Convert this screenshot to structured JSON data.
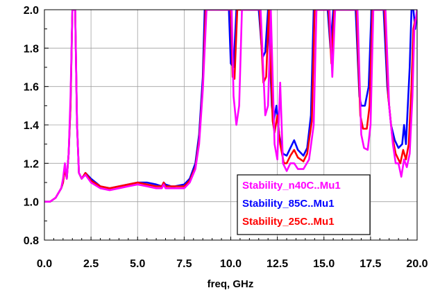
{
  "chart_data": {
    "type": "line",
    "title": "",
    "xlabel": "freq, GHz",
    "ylabel": "",
    "xlim": [
      0.0,
      20.0
    ],
    "ylim": [
      0.8,
      2.0
    ],
    "x_ticks": [
      "0.0",
      "2.5",
      "5.0",
      "7.5",
      "10.0",
      "12.5",
      "15.0",
      "17.5",
      "20.0"
    ],
    "y_ticks": [
      "0.8",
      "1.0",
      "1.2",
      "1.4",
      "1.6",
      "1.8",
      "2.0"
    ],
    "grid": true,
    "legend_position": "bottom-right",
    "legend": [
      "Stability_n40C..Mu1",
      "Stability_85C..Mu1",
      "Stability_25C..Mu1"
    ],
    "series": [
      {
        "name": "Stability_85C..Mu1",
        "color": "#0000ff",
        "points": [
          [
            0.0,
            1.0
          ],
          [
            0.3,
            1.0
          ],
          [
            0.6,
            1.02
          ],
          [
            0.9,
            1.07
          ],
          [
            1.0,
            1.1
          ],
          [
            1.1,
            1.18
          ],
          [
            1.2,
            1.12
          ],
          [
            1.3,
            1.25
          ],
          [
            1.4,
            1.5
          ],
          [
            1.5,
            2.0
          ],
          [
            1.65,
            2.0
          ],
          [
            1.75,
            1.4
          ],
          [
            1.85,
            1.15
          ],
          [
            2.0,
            1.12
          ],
          [
            2.2,
            1.15
          ],
          [
            2.5,
            1.12
          ],
          [
            3.0,
            1.08
          ],
          [
            3.5,
            1.07
          ],
          [
            4.0,
            1.08
          ],
          [
            4.5,
            1.09
          ],
          [
            5.0,
            1.1
          ],
          [
            5.5,
            1.1
          ],
          [
            6.0,
            1.09
          ],
          [
            6.3,
            1.08
          ],
          [
            6.4,
            1.1
          ],
          [
            6.5,
            1.09
          ],
          [
            6.8,
            1.08
          ],
          [
            7.0,
            1.08
          ],
          [
            7.5,
            1.09
          ],
          [
            7.8,
            1.12
          ],
          [
            8.1,
            1.2
          ],
          [
            8.3,
            1.35
          ],
          [
            8.5,
            1.65
          ],
          [
            8.6,
            2.0
          ],
          [
            9.9,
            2.0
          ],
          [
            10.0,
            1.72
          ],
          [
            10.15,
            1.7
          ],
          [
            10.3,
            2.0
          ],
          [
            11.5,
            2.0
          ],
          [
            11.7,
            1.75
          ],
          [
            11.85,
            1.78
          ],
          [
            12.0,
            2.0
          ],
          [
            12.2,
            1.5
          ],
          [
            12.3,
            1.42
          ],
          [
            12.45,
            1.5
          ],
          [
            12.6,
            1.35
          ],
          [
            12.8,
            1.25
          ],
          [
            13.0,
            1.24
          ],
          [
            13.2,
            1.28
          ],
          [
            13.4,
            1.32
          ],
          [
            13.6,
            1.27
          ],
          [
            13.9,
            1.24
          ],
          [
            14.1,
            1.28
          ],
          [
            14.3,
            1.45
          ],
          [
            14.45,
            2.0
          ],
          [
            15.2,
            2.0
          ],
          [
            15.35,
            1.8
          ],
          [
            15.5,
            2.0
          ],
          [
            16.7,
            2.0
          ],
          [
            16.9,
            1.55
          ],
          [
            17.0,
            1.5
          ],
          [
            17.2,
            1.5
          ],
          [
            17.4,
            1.6
          ],
          [
            17.55,
            2.0
          ],
          [
            18.2,
            2.0
          ],
          [
            18.4,
            1.6
          ],
          [
            18.6,
            1.4
          ],
          [
            18.8,
            1.32
          ],
          [
            19.0,
            1.28
          ],
          [
            19.2,
            1.3
          ],
          [
            19.3,
            1.4
          ],
          [
            19.4,
            1.3
          ],
          [
            19.5,
            1.5
          ],
          [
            19.6,
            1.7
          ],
          [
            19.7,
            2.0
          ],
          [
            19.8,
            2.0
          ],
          [
            19.9,
            1.9
          ],
          [
            20.0,
            2.0
          ]
        ]
      },
      {
        "name": "Stability_25C..Mu1",
        "color": "#ff0000",
        "points": [
          [
            0.0,
            1.0
          ],
          [
            0.3,
            1.0
          ],
          [
            0.6,
            1.02
          ],
          [
            0.9,
            1.07
          ],
          [
            1.0,
            1.1
          ],
          [
            1.1,
            1.17
          ],
          [
            1.2,
            1.12
          ],
          [
            1.3,
            1.25
          ],
          [
            1.4,
            1.5
          ],
          [
            1.5,
            2.0
          ],
          [
            1.65,
            2.0
          ],
          [
            1.75,
            1.4
          ],
          [
            1.85,
            1.15
          ],
          [
            2.0,
            1.12
          ],
          [
            2.2,
            1.15
          ],
          [
            2.5,
            1.11
          ],
          [
            3.0,
            1.08
          ],
          [
            3.5,
            1.07
          ],
          [
            4.0,
            1.08
          ],
          [
            4.5,
            1.09
          ],
          [
            5.0,
            1.1
          ],
          [
            5.5,
            1.09
          ],
          [
            6.0,
            1.08
          ],
          [
            6.3,
            1.08
          ],
          [
            6.4,
            1.1
          ],
          [
            6.5,
            1.08
          ],
          [
            6.8,
            1.08
          ],
          [
            7.0,
            1.08
          ],
          [
            7.5,
            1.08
          ],
          [
            7.8,
            1.11
          ],
          [
            8.1,
            1.18
          ],
          [
            8.3,
            1.32
          ],
          [
            8.5,
            1.6
          ],
          [
            8.65,
            2.0
          ],
          [
            10.0,
            2.0
          ],
          [
            10.1,
            1.65
          ],
          [
            10.2,
            1.64
          ],
          [
            10.35,
            2.0
          ],
          [
            11.55,
            2.0
          ],
          [
            11.75,
            1.62
          ],
          [
            11.9,
            1.65
          ],
          [
            12.05,
            2.0
          ],
          [
            12.25,
            1.42
          ],
          [
            12.35,
            1.36
          ],
          [
            12.5,
            1.45
          ],
          [
            12.65,
            1.3
          ],
          [
            12.85,
            1.2
          ],
          [
            13.0,
            1.2
          ],
          [
            13.2,
            1.24
          ],
          [
            13.4,
            1.27
          ],
          [
            13.6,
            1.23
          ],
          [
            13.9,
            1.21
          ],
          [
            14.1,
            1.25
          ],
          [
            14.35,
            1.42
          ],
          [
            14.5,
            2.0
          ],
          [
            15.25,
            2.0
          ],
          [
            15.4,
            1.72
          ],
          [
            15.55,
            2.0
          ],
          [
            16.75,
            2.0
          ],
          [
            16.95,
            1.45
          ],
          [
            17.1,
            1.38
          ],
          [
            17.3,
            1.38
          ],
          [
            17.45,
            1.5
          ],
          [
            17.6,
            2.0
          ],
          [
            18.25,
            2.0
          ],
          [
            18.45,
            1.55
          ],
          [
            18.65,
            1.35
          ],
          [
            18.85,
            1.25
          ],
          [
            19.0,
            1.22
          ],
          [
            19.1,
            1.2
          ],
          [
            19.25,
            1.27
          ],
          [
            19.4,
            1.22
          ],
          [
            19.55,
            1.3
          ],
          [
            19.7,
            1.6
          ],
          [
            19.8,
            1.9
          ],
          [
            19.9,
            1.95
          ],
          [
            20.0,
            1.95
          ]
        ]
      },
      {
        "name": "Stability_n40C..Mu1",
        "color": "#ff00ff",
        "points": [
          [
            0.0,
            1.0
          ],
          [
            0.3,
            1.0
          ],
          [
            0.6,
            1.02
          ],
          [
            0.9,
            1.07
          ],
          [
            1.0,
            1.12
          ],
          [
            1.1,
            1.2
          ],
          [
            1.2,
            1.12
          ],
          [
            1.3,
            1.25
          ],
          [
            1.4,
            1.55
          ],
          [
            1.5,
            2.0
          ],
          [
            1.65,
            2.0
          ],
          [
            1.75,
            1.4
          ],
          [
            1.85,
            1.15
          ],
          [
            2.0,
            1.12
          ],
          [
            2.2,
            1.14
          ],
          [
            2.5,
            1.1
          ],
          [
            3.0,
            1.07
          ],
          [
            3.5,
            1.06
          ],
          [
            4.0,
            1.07
          ],
          [
            4.5,
            1.08
          ],
          [
            5.0,
            1.09
          ],
          [
            5.5,
            1.08
          ],
          [
            6.0,
            1.07
          ],
          [
            6.3,
            1.07
          ],
          [
            6.4,
            1.09
          ],
          [
            6.5,
            1.07
          ],
          [
            6.8,
            1.07
          ],
          [
            7.0,
            1.07
          ],
          [
            7.5,
            1.07
          ],
          [
            7.8,
            1.1
          ],
          [
            8.1,
            1.17
          ],
          [
            8.3,
            1.3
          ],
          [
            8.5,
            1.58
          ],
          [
            8.7,
            2.0
          ],
          [
            10.05,
            2.0
          ],
          [
            10.15,
            1.55
          ],
          [
            10.3,
            1.4
          ],
          [
            10.45,
            1.5
          ],
          [
            10.6,
            2.0
          ],
          [
            11.6,
            2.0
          ],
          [
            11.85,
            1.45
          ],
          [
            12.0,
            1.5
          ],
          [
            12.15,
            2.0
          ],
          [
            12.35,
            1.3
          ],
          [
            12.5,
            1.22
          ],
          [
            12.65,
            1.62
          ],
          [
            12.8,
            1.2
          ],
          [
            13.0,
            1.16
          ],
          [
            13.2,
            1.2
          ],
          [
            13.4,
            1.2
          ],
          [
            13.6,
            1.17
          ],
          [
            13.9,
            1.17
          ],
          [
            14.2,
            1.22
          ],
          [
            14.45,
            1.4
          ],
          [
            14.6,
            2.0
          ],
          [
            15.3,
            2.0
          ],
          [
            15.45,
            1.65
          ],
          [
            15.6,
            2.0
          ],
          [
            16.8,
            2.0
          ],
          [
            17.0,
            1.35
          ],
          [
            17.15,
            1.28
          ],
          [
            17.35,
            1.27
          ],
          [
            17.5,
            1.4
          ],
          [
            17.65,
            2.0
          ],
          [
            18.3,
            2.0
          ],
          [
            18.5,
            1.5
          ],
          [
            18.7,
            1.3
          ],
          [
            18.85,
            1.2
          ],
          [
            19.0,
            1.2
          ],
          [
            19.15,
            1.13
          ],
          [
            19.3,
            1.22
          ],
          [
            19.45,
            1.18
          ],
          [
            19.6,
            1.25
          ],
          [
            19.75,
            1.55
          ],
          [
            19.85,
            1.9
          ],
          [
            20.0,
            2.0
          ]
        ]
      }
    ]
  }
}
